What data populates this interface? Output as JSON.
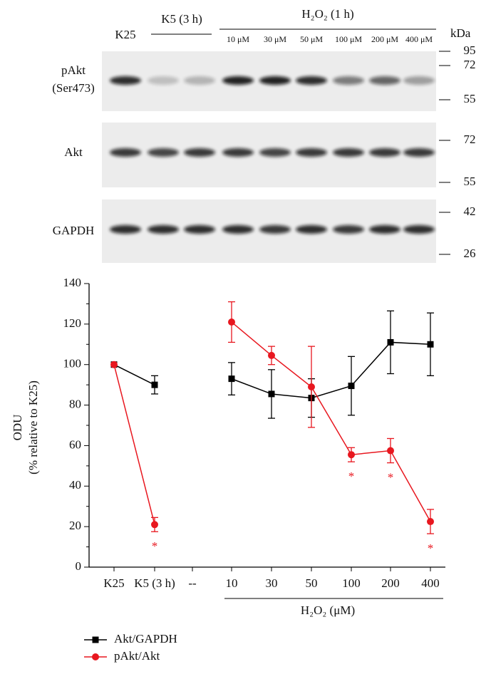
{
  "blot": {
    "group_labels": [
      "K25",
      "K5 (3 h)",
      "H₂O₂ (1 h)"
    ],
    "concentration_labels": [
      "10 μM",
      "30 μM",
      "50 μM",
      "100 μM",
      "200 μM",
      "400 μM"
    ],
    "unit": "kDa",
    "rows": [
      {
        "label": [
          "pAkt",
          "(Ser473)"
        ],
        "markers": [
          95,
          72,
          55
        ]
      },
      {
        "label": [
          "Akt"
        ],
        "markers": [
          72,
          55
        ]
      },
      {
        "label": [
          "GAPDH"
        ],
        "markers": [
          42,
          26
        ]
      }
    ]
  },
  "chart_data": {
    "type": "line",
    "y_label": [
      "ODU",
      "(% relative to K25)"
    ],
    "group_label": "H₂O₂ (μM)",
    "categories": [
      "K25",
      "K5 (3 h)",
      "--",
      "10",
      "30",
      "50",
      "100",
      "200",
      "400"
    ],
    "ylim": [
      0,
      140
    ],
    "yticks": [
      0,
      20,
      40,
      60,
      80,
      100,
      120,
      140
    ],
    "series": [
      {
        "name": "Akt/GAPDH",
        "color": "#000000",
        "marker": "square",
        "values": [
          100,
          90,
          null,
          93,
          85.5,
          83.5,
          89.5,
          111,
          110
        ],
        "errors": [
          0,
          4.5,
          null,
          8,
          12,
          9.5,
          14.5,
          15.5,
          15.5
        ]
      },
      {
        "name": "pAkt/Akt",
        "color": "#e8171f",
        "marker": "circle",
        "values": [
          100,
          21,
          null,
          121,
          104.5,
          89,
          55.5,
          57.5,
          22.5
        ],
        "errors": [
          0,
          3.5,
          null,
          10,
          4.5,
          20,
          3.5,
          6,
          6
        ],
        "significance": [
          null,
          "*",
          null,
          null,
          null,
          null,
          "*",
          "*",
          "*"
        ]
      }
    ]
  }
}
